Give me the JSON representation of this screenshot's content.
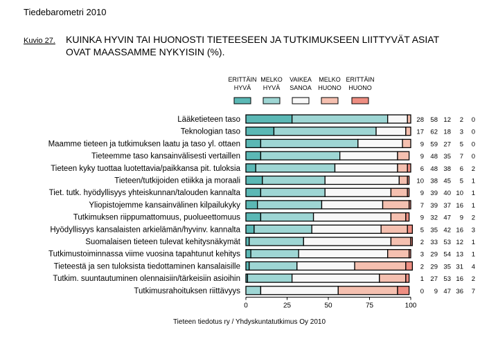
{
  "header": {
    "title": "Tiedebarometri 2010",
    "figure_label": "Kuvio 27.",
    "heading_line1": "KUINKA HYVIN TAI HUONOSTI TIETEESEEN JA TUTKIMUKSEEN LIITTYVÄT ASIAT",
    "heading_line2": "OVAT MAASSAMME NYKYISIN (%)."
  },
  "footer": "Tieteen tiedotus ry / Yhdyskuntatutkimus Oy 2010",
  "chart_data": {
    "type": "bar",
    "orientation": "horizontal",
    "stacked": true,
    "title": "KUINKA HYVIN TAI HUONOSTI TIETEESEEN JA TUTKIMUKSEEN LIITTYVÄT ASIAT OVAT MAASSAMME NYKYISIN (%).",
    "xlim": [
      0,
      100
    ],
    "xticks": [
      "0",
      "25",
      "50",
      "75",
      "100"
    ],
    "legend_placement": "top",
    "categories": [
      "Lääketieteen taso",
      "Teknologian taso",
      "Maamme tieteen ja tutkimuksen laatu ja taso yl. ottaen",
      "Tieteemme taso kansainvälisesti vertaillen",
      "Tieteen kyky tuottaa luotettavia/paikkansa pit. tuloksia",
      "Tieteen/tutkijoiden etiikka ja moraali",
      "Tiet. tutk. hyödyllisyys yhteiskunnan/talouden kannalta",
      "Yliopistojemme kansainvälinen kilpailukyky",
      "Tutkimuksen riippumattomuus, puolueettomuus",
      "Hyödyllisyys kansalaisten arkielämän/hyvinv. kannalta",
      "Suomalaisen tieteen tulevat kehitysnäkymät",
      "Tutkimustoiminnassa viime vuosina tapahtunut kehitys",
      "Tieteestä ja sen tuloksista tiedottaminen kansalaisille",
      "Tutkim. suuntautuminen olennaisiin/tärkeisiin asioihin",
      "Tutkimusrahoituksen riittävyys"
    ],
    "series": [
      {
        "name": "ERITTÄIN HYVÄ",
        "label1": "ERITTÄIN",
        "label2": "HYVÄ",
        "color": "#5bb8b5",
        "values": [
          28,
          17,
          9,
          9,
          6,
          10,
          9,
          7,
          9,
          5,
          2,
          3,
          2,
          1,
          0
        ]
      },
      {
        "name": "MELKO HYVÄ",
        "label1": "MELKO",
        "label2": "HYVÄ",
        "color": "#9ed6d4",
        "values": [
          58,
          62,
          59,
          48,
          48,
          38,
          39,
          39,
          32,
          35,
          33,
          29,
          29,
          27,
          9
        ]
      },
      {
        "name": "VAIKEA SANOA",
        "label1": "VAIKEA",
        "label2": "SANOA",
        "color": "#f8f8f8",
        "values": [
          12,
          18,
          27,
          35,
          38,
          45,
          40,
          37,
          47,
          42,
          53,
          54,
          35,
          53,
          47
        ]
      },
      {
        "name": "MELKO HUONO",
        "label1": "MELKO",
        "label2": "HUONO",
        "color": "#f5c0b0",
        "values": [
          2,
          3,
          5,
          7,
          6,
          5,
          10,
          16,
          9,
          16,
          12,
          13,
          31,
          16,
          36
        ]
      },
      {
        "name": "ERITTÄIN HUONO",
        "label1": "ERITTÄIN",
        "label2": "HUONO",
        "color": "#ee8e82",
        "values": [
          0,
          0,
          0,
          0,
          2,
          1,
          1,
          1,
          2,
          3,
          1,
          1,
          4,
          2,
          7
        ]
      }
    ]
  }
}
